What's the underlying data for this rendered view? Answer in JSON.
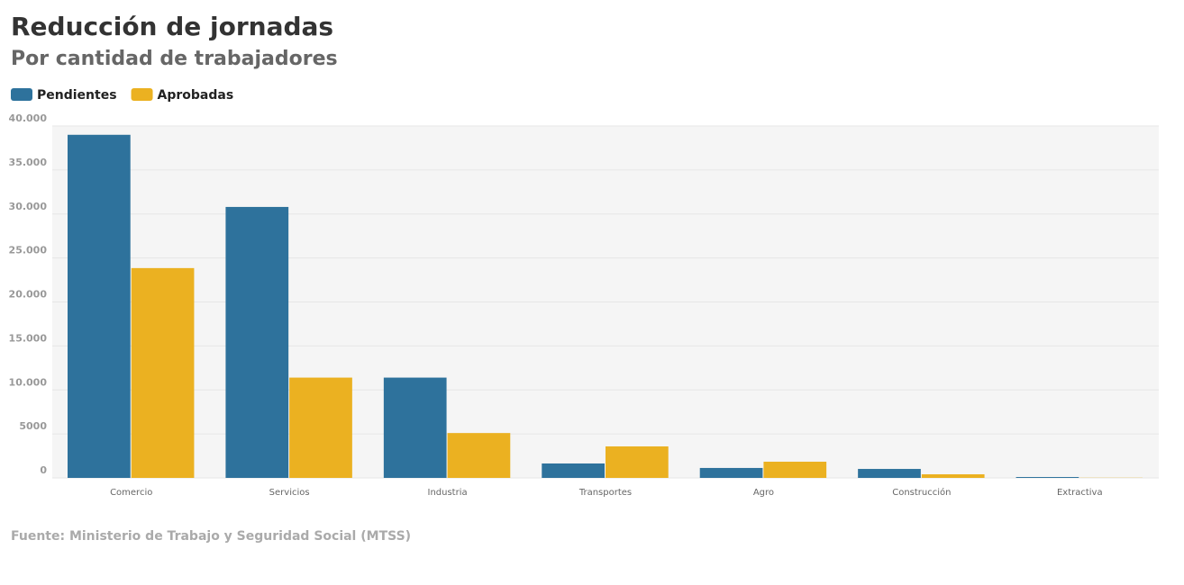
{
  "chart_data": {
    "type": "bar",
    "title": "Reducción de jornadas",
    "subtitle": "Por cantidad de trabajadores",
    "source": "Fuente: Ministerio de Trabajo y Seguridad Social (MTSS)",
    "categories": [
      "Comercio",
      "Servicios",
      "Industria",
      "Transportes",
      "Agro",
      "Construcción",
      "Extractiva"
    ],
    "series": [
      {
        "name": "Pendientes",
        "color": "#2e729c",
        "values": [
          39000,
          30800,
          11400,
          1640,
          1130,
          1020,
          100
        ]
      },
      {
        "name": "Aprobadas",
        "color": "#ebb121",
        "values": [
          23850,
          11400,
          5100,
          3580,
          1840,
          410,
          20
        ]
      }
    ],
    "ylim": [
      0,
      40000
    ],
    "yticks": [
      0,
      5000,
      {
        "value": 10000,
        "label": "10.000"
      },
      {
        "value": 15000,
        "label": "15.000"
      },
      {
        "value": 20000,
        "label": "20.000"
      },
      {
        "value": 25000,
        "label": "25.000"
      },
      {
        "value": 30000,
        "label": "30.000"
      },
      {
        "value": 35000,
        "label": "35.000"
      },
      {
        "value": 40000,
        "label": "40.000"
      }
    ],
    "grid": true,
    "legend": "top-left"
  }
}
